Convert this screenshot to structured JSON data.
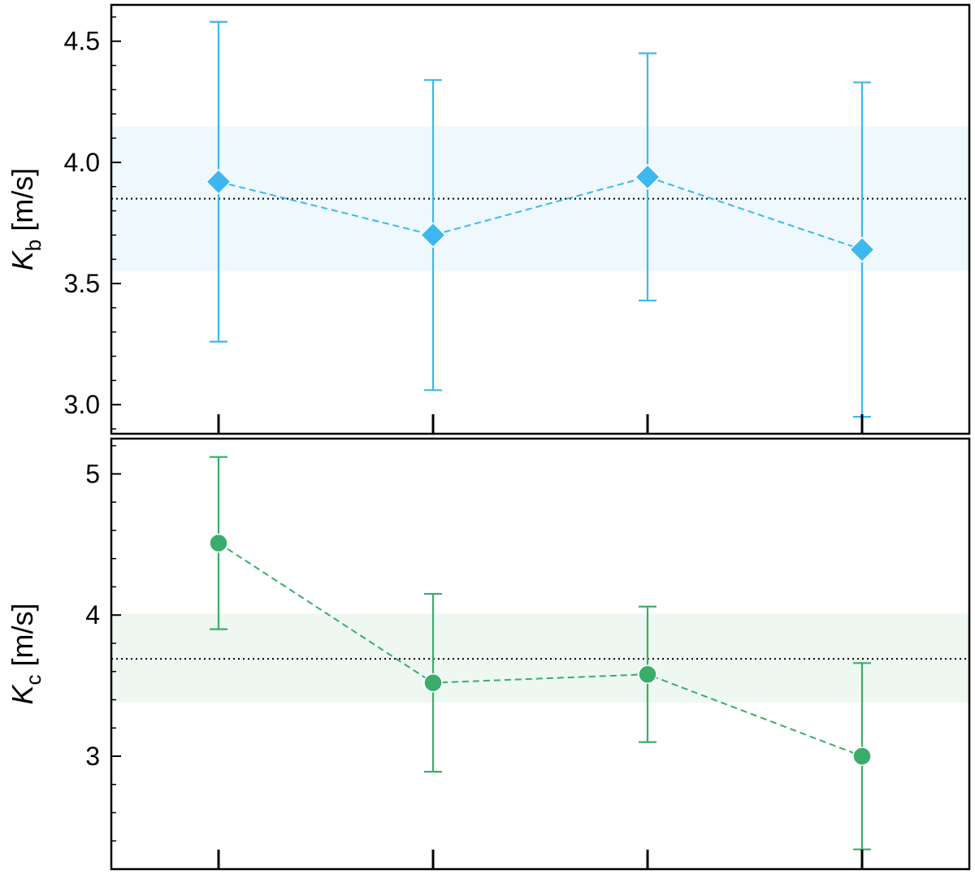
{
  "chart_data": [
    {
      "type": "scatter",
      "panel": "top",
      "ylabel": {
        "symbol": "K",
        "subscript": "b",
        "unit": "[m/s]"
      },
      "ylim": [
        2.88,
        4.65
      ],
      "yticks": [
        3.0,
        3.5,
        4.0,
        4.5
      ],
      "ytick_labels": [
        "3.0",
        "3.5",
        "4.0",
        "4.5"
      ],
      "x": [
        1,
        2,
        3,
        4
      ],
      "xlim": [
        0.5,
        4.5
      ],
      "series": [
        {
          "values": [
            3.92,
            3.7,
            3.94,
            3.64
          ],
          "err_low": [
            3.26,
            3.06,
            3.43,
            2.95
          ],
          "err_high": [
            4.58,
            4.34,
            4.45,
            4.33
          ],
          "marker": "diamond",
          "color": "#3db8ee",
          "linestyle": "dashed"
        }
      ],
      "reference_line": 3.85,
      "band": [
        3.55,
        4.15
      ],
      "band_color": "#eef8fd",
      "grid": false
    },
    {
      "type": "scatter",
      "panel": "bottom",
      "ylabel": {
        "symbol": "K",
        "subscript": "c",
        "unit": "[m/s]"
      },
      "ylim": [
        2.2,
        5.25
      ],
      "yticks": [
        3,
        4,
        5
      ],
      "ytick_labels": [
        "3",
        "4",
        "5"
      ],
      "x": [
        1,
        2,
        3,
        4
      ],
      "xlim": [
        0.5,
        4.5
      ],
      "series": [
        {
          "values": [
            4.51,
            3.52,
            3.58,
            3.0
          ],
          "err_low": [
            3.9,
            2.89,
            3.1,
            2.34
          ],
          "err_high": [
            5.12,
            4.15,
            4.06,
            3.66
          ],
          "marker": "circle",
          "color": "#3aad6a",
          "linestyle": "dashed"
        }
      ],
      "reference_line": 3.69,
      "band": [
        3.38,
        4.01
      ],
      "band_color": "#eef8f1",
      "grid": false
    }
  ]
}
